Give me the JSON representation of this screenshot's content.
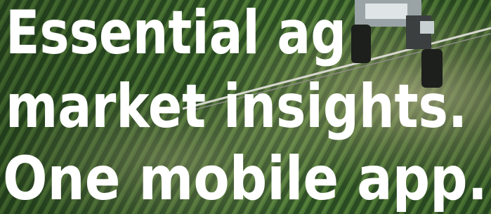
{
  "headline": {
    "lines": [
      "Essential ag",
      "market insights.",
      "One mobile app."
    ]
  }
}
